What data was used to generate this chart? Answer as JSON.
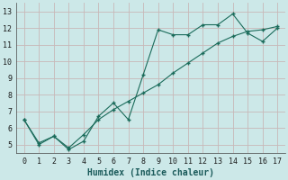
{
  "xlabel": "Humidex (Indice chaleur)",
  "bg_color": "#cce8e8",
  "grid_color": "#c8b8b8",
  "line_color": "#1a6b5a",
  "series1_x": [
    0,
    1,
    2,
    3,
    4,
    5,
    6,
    7,
    8,
    9,
    10,
    11,
    12,
    13,
    14,
    15,
    16,
    17
  ],
  "series1_y": [
    6.5,
    5.0,
    5.5,
    4.7,
    5.2,
    6.7,
    7.5,
    6.5,
    9.2,
    11.9,
    11.6,
    11.6,
    12.2,
    12.2,
    12.85,
    11.7,
    11.2,
    12.0
  ],
  "series2_x": [
    0,
    1,
    2,
    3,
    4,
    5,
    6,
    7,
    8,
    9,
    10,
    11,
    12,
    13,
    14,
    15,
    16,
    17
  ],
  "series2_y": [
    6.5,
    5.1,
    5.5,
    4.8,
    5.6,
    6.5,
    7.1,
    7.6,
    8.1,
    8.6,
    9.3,
    9.9,
    10.5,
    11.1,
    11.5,
    11.8,
    11.9,
    12.1
  ],
  "xlim": [
    -0.5,
    17.5
  ],
  "ylim": [
    4.5,
    13.5
  ],
  "xticks": [
    0,
    1,
    2,
    3,
    4,
    5,
    6,
    7,
    8,
    9,
    10,
    11,
    12,
    13,
    14,
    15,
    16,
    17
  ],
  "yticks": [
    5,
    6,
    7,
    8,
    9,
    10,
    11,
    12,
    13
  ]
}
